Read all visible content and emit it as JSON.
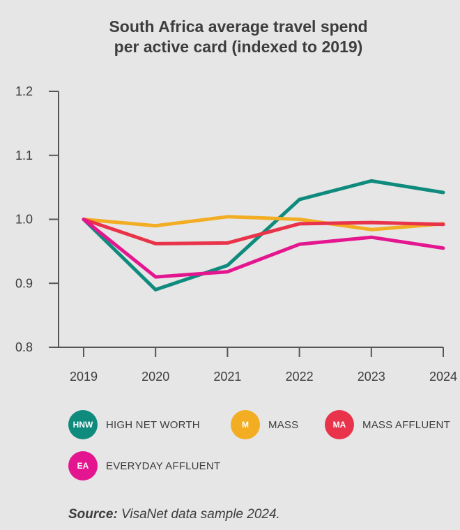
{
  "title_line1": "South Africa average travel spend",
  "title_line2": "per active card (indexed to 2019)",
  "chart_data": {
    "type": "line",
    "title": "South Africa average travel spend per active card (indexed to 2019)",
    "x": [
      "2019",
      "2020",
      "2021",
      "2022",
      "2023",
      "2024"
    ],
    "ylim": [
      0.8,
      1.2
    ],
    "yticks": [
      "0.8",
      "0.9",
      "1.0",
      "1.1",
      "1.2"
    ],
    "grid": false,
    "legend_position": "bottom",
    "series": [
      {
        "name": "HIGH NET WORTH",
        "badge": "HNW",
        "color": "#0f8b7e",
        "values": [
          1.0,
          0.89,
          0.928,
          1.031,
          1.06,
          1.042
        ]
      },
      {
        "name": "MASS",
        "badge": "M",
        "color": "#f2ad22",
        "values": [
          1.0,
          0.99,
          1.004,
          1.0,
          0.984,
          0.993
        ]
      },
      {
        "name": "MASS AFFLUENT",
        "badge": "MA",
        "color": "#e8334a",
        "values": [
          1.0,
          0.962,
          0.963,
          0.993,
          0.995,
          0.992
        ]
      },
      {
        "name": "EVERYDAY AFFLUENT",
        "badge": "EA",
        "color": "#e4168f",
        "values": [
          1.0,
          0.91,
          0.918,
          0.961,
          0.972,
          0.955
        ]
      }
    ]
  },
  "source_label": "Source:",
  "source_text": " VisaNet data sample 2024."
}
